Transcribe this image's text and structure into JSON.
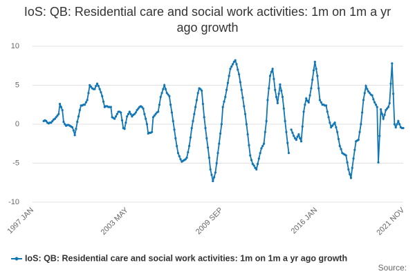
{
  "chart_data": {
    "type": "line",
    "title": "IoS: QB: Residential care and social work activities: 1m on 1m a yr ago growth",
    "source": "Source:",
    "categories": [
      "1997 JAN",
      null,
      null,
      null,
      null,
      null,
      null,
      null,
      null,
      null,
      null,
      null,
      null,
      null,
      null,
      null,
      null,
      null,
      null,
      null,
      null,
      null,
      null,
      null,
      null,
      null,
      null,
      null,
      null,
      null,
      null,
      null,
      null,
      null,
      null,
      null,
      null,
      null,
      null,
      null,
      null,
      null,
      null,
      null,
      null,
      null,
      null,
      null,
      null,
      null,
      null,
      null,
      null,
      null,
      null,
      null,
      null,
      null,
      null,
      null,
      null,
      null,
      null,
      null,
      null,
      null,
      null,
      null,
      null,
      null,
      null,
      null,
      null,
      null,
      null,
      null,
      "2003 MAY",
      null,
      null,
      null,
      null,
      null,
      null,
      null,
      null,
      null,
      null,
      null,
      null,
      null,
      null,
      null,
      null,
      null,
      null,
      null,
      null,
      null,
      null,
      null,
      null,
      null,
      null,
      null,
      null,
      null,
      null,
      null,
      null,
      null,
      null,
      null,
      null,
      null,
      null,
      null,
      null,
      null,
      null,
      null,
      null,
      null,
      null,
      null,
      null,
      null,
      null,
      null,
      null,
      null,
      null,
      null,
      null,
      null,
      null,
      null,
      null,
      null,
      null,
      null,
      null,
      null,
      null,
      null,
      null,
      null,
      null,
      null,
      null,
      null,
      null,
      null,
      "2009 SEP",
      null,
      null,
      null,
      null,
      null,
      null,
      null,
      null,
      null,
      null,
      null,
      null,
      null,
      null,
      null,
      null,
      null,
      null,
      null,
      null,
      null,
      null,
      null,
      null,
      null,
      null,
      null,
      null,
      null,
      null,
      null,
      null,
      null,
      null,
      null,
      null,
      null,
      null,
      null,
      null,
      null,
      null,
      null,
      null,
      null,
      null,
      null,
      null,
      null,
      null,
      null,
      null,
      null,
      null,
      null,
      null,
      null,
      null,
      null,
      null,
      null,
      null,
      null,
      null,
      null,
      null,
      null,
      null,
      null,
      null,
      null,
      null,
      null,
      null,
      null,
      "2016 JAN",
      null,
      null,
      null,
      null,
      null,
      null,
      null,
      null,
      null,
      null,
      null,
      null,
      null,
      null,
      null,
      null,
      null,
      null,
      null,
      null,
      null,
      null,
      null,
      null,
      null,
      null,
      null,
      null,
      null,
      null,
      null,
      null,
      null,
      null,
      null,
      null,
      null,
      null,
      null,
      null,
      null,
      null,
      null,
      null,
      null,
      null,
      null,
      null,
      null,
      null,
      null,
      null,
      null,
      null,
      null,
      null,
      null,
      null,
      null,
      null,
      null,
      null,
      null,
      null,
      null,
      null,
      null,
      null,
      null,
      "2021 NOV"
    ],
    "series": [
      {
        "name": "IoS: QB: Residential care and social work activities: 1m on 1m a yr ago growth",
        "color": "#0f75b4",
        "values": [
          null,
          null,
          null,
          null,
          null,
          null,
          null,
          null,
          null,
          0.4,
          0.5,
          0.4,
          0.2,
          0.1,
          0.2,
          0.2,
          0.4,
          0.6,
          0.7,
          0.9,
          1.1,
          1.3,
          2.6,
          2.2,
          1.8,
          0.3,
          0.0,
          -0.2,
          -0.1,
          -0.1,
          -0.2,
          -0.3,
          -0.4,
          -0.8,
          -1.4,
          -0.6,
          0.3,
          1.0,
          1.8,
          2.4,
          2.4,
          2.5,
          2.5,
          2.8,
          3.1,
          4.0,
          5.0,
          4.8,
          4.6,
          4.5,
          4.5,
          4.9,
          5.2,
          4.9,
          4.5,
          4.1,
          3.6,
          2.9,
          2.2,
          2.3,
          2.3,
          2.2,
          2.2,
          2.2,
          0.9,
          0.8,
          0.7,
          1.0,
          1.3,
          1.6,
          1.6,
          1.5,
          0.5,
          -0.5,
          -0.6,
          0.2,
          1.0,
          1.3,
          1.6,
          1.3,
          1.0,
          1.2,
          1.3,
          1.5,
          1.8,
          2.0,
          2.2,
          2.3,
          2.2,
          2.0,
          1.3,
          0.7,
          0.0,
          -1.2,
          -1.1,
          -1.1,
          -1.0,
          0.9,
          1.1,
          1.3,
          1.5,
          1.6,
          2.5,
          3.5,
          4.0,
          4.5,
          5.0,
          4.5,
          4.0,
          3.8,
          3.6,
          2.5,
          1.5,
          0.4,
          -0.7,
          -1.8,
          -2.8,
          -3.7,
          -4.1,
          -4.5,
          -4.8,
          -4.7,
          -4.6,
          -4.5,
          -4.3,
          -3.6,
          -2.8,
          -1.7,
          -0.5,
          0.4,
          1.3,
          2.2,
          3.1,
          4.0,
          4.6,
          4.5,
          4.3,
          2.6,
          0.9,
          -0.5,
          -1.8,
          -3.0,
          -4.3,
          -5.8,
          -6.5,
          -7.3,
          -6.8,
          -6.2,
          -5.0,
          -3.7,
          -2.5,
          -1.2,
          0.0,
          2.2,
          2.9,
          3.5,
          4.4,
          5.3,
          6.2,
          7.1,
          7.4,
          7.7,
          8.0,
          8.2,
          7.7,
          7.0,
          6.4,
          5.4,
          4.4,
          3.4,
          2.3,
          1.3,
          0.0,
          -1.3,
          -2.7,
          -4.0,
          -4.6,
          -5.1,
          -5.3,
          -5.6,
          -5.8,
          -5.1,
          -4.4,
          -3.7,
          -3.1,
          -2.8,
          -2.5,
          -1.0,
          0.4,
          3.1,
          4.6,
          6.2,
          6.7,
          7.1,
          5.8,
          4.4,
          3.5,
          2.7,
          3.9,
          5.1,
          4.3,
          3.5,
          2.0,
          0.4,
          -1.0,
          -2.4,
          -3.7,
          null,
          -0.7,
          -1.1,
          -1.5,
          -1.8,
          -2.0,
          -1.6,
          -1.3,
          -1.8,
          -2.2,
          -0.3,
          1.6,
          2.5,
          3.3,
          3.0,
          2.8,
          3.7,
          4.6,
          5.7,
          6.9,
          8.0,
          7.1,
          6.2,
          4.6,
          3.1,
          2.8,
          2.5,
          2.5,
          2.4,
          2.4,
          1.6,
          0.9,
          0.2,
          -0.4,
          -0.2,
          0.0,
          0.2,
          -0.4,
          -1.0,
          -1.9,
          -2.8,
          -3.2,
          -3.7,
          -3.8,
          -3.9,
          -4.0,
          -4.9,
          -5.8,
          -6.4,
          -6.9,
          -5.6,
          -4.4,
          -3.3,
          -2.2,
          -2.1,
          -2.0,
          -1.0,
          0.0,
          1.5,
          3.1,
          4.0,
          4.9,
          4.5,
          4.2,
          4.0,
          3.8,
          3.7,
          3.2,
          2.8,
          2.5,
          2.2,
          -4.9,
          -1.5,
          1.9,
          1.3,
          0.7,
          1.2,
          1.8,
          2.0,
          2.2,
          2.7,
          5.2,
          7.8,
          3.9,
          0.0,
          -0.4,
          0.0,
          0.4,
          0.0,
          -0.4,
          -0.5,
          -0.5
        ]
      }
    ],
    "ylim": [
      -10,
      10
    ],
    "yticks": [
      -10,
      -5,
      0,
      5,
      10
    ],
    "grid": true
  }
}
